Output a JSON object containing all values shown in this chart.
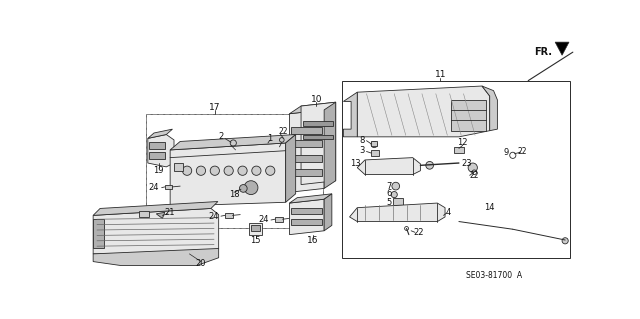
{
  "bg_color": "#ffffff",
  "diagram_ref": "SE03-81700  A",
  "line_color": "#2a2a2a",
  "fill_light": "#e8e8e8",
  "fill_dark": "#b0b0b0",
  "fill_med": "#cccccc"
}
